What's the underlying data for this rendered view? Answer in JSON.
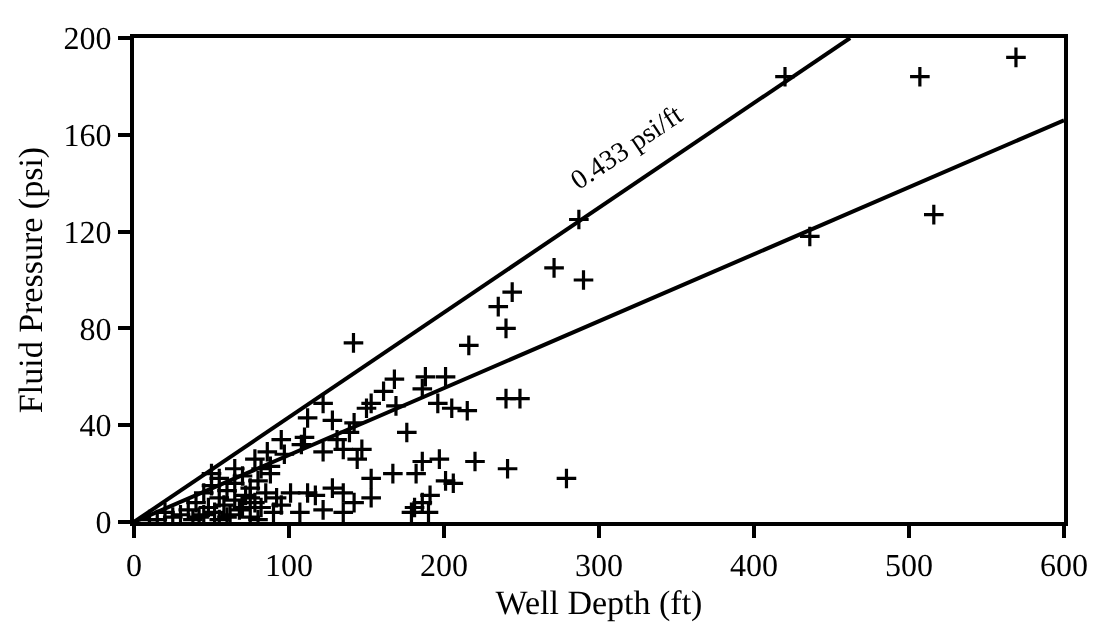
{
  "chart_data": {
    "type": "scatter",
    "xlabel": "Well Depth (ft)",
    "ylabel": "Fluid Pressure (psi)",
    "xlim": [
      0,
      600
    ],
    "ylim": [
      0,
      200
    ],
    "xticks": [
      0,
      100,
      200,
      300,
      400,
      500,
      600
    ],
    "yticks": [
      0,
      40,
      80,
      120,
      160,
      200
    ],
    "annotations": [
      "0.433 psi/ft"
    ],
    "series": [
      {
        "marker": "cross",
        "color": "#000000",
        "x": [
          420,
          507,
          569,
          287,
          271,
          290,
          436,
          516,
          279,
          141.6,
          235,
          244,
          240,
          216,
          249,
          240,
          196,
          205,
          215,
          188,
          186,
          168,
          161,
          169,
          153,
          150,
          176,
          201,
          122,
          112,
          128,
          142,
          139,
          131,
          135,
          122,
          110,
          108,
          95,
          97,
          86,
          88,
          82,
          78,
          144,
          147,
          153,
          167,
          182,
          186,
          197,
          220,
          241,
          201,
          206,
          191,
          186,
          181,
          179,
          190,
          142,
          153,
          135,
          128,
          117,
          112,
          101,
          107,
          122,
          135,
          95,
          30,
          35,
          40,
          42,
          45,
          48,
          50,
          52,
          55,
          55,
          58,
          60,
          62,
          65,
          65,
          68,
          70,
          72,
          75,
          75,
          78,
          80,
          82,
          85,
          88,
          90,
          92,
          38,
          45,
          50,
          55,
          60,
          65,
          70,
          75,
          80,
          25,
          20,
          15,
          10
        ],
        "values": [
          184,
          184,
          192,
          125,
          105,
          100,
          118,
          127,
          18,
          74,
          89,
          95,
          80,
          73,
          51,
          51,
          49,
          47,
          46,
          60,
          55,
          59,
          54,
          48,
          49,
          47,
          37,
          60,
          49,
          43,
          42,
          41,
          37,
          34,
          30,
          29,
          35,
          32,
          34,
          28,
          29,
          23,
          22,
          26,
          26,
          30,
          18,
          20,
          20,
          25,
          26,
          25,
          22,
          17,
          16,
          11,
          8,
          6,
          4,
          4,
          8,
          10,
          12,
          14,
          11,
          12,
          12,
          4,
          5,
          4,
          7,
          3,
          5,
          8,
          2,
          12,
          6,
          15,
          4,
          10,
          18,
          7,
          13,
          3,
          16,
          9,
          5,
          19,
          11,
          2,
          14,
          8,
          17,
          6,
          12,
          20,
          4,
          10,
          1,
          3,
          20,
          1,
          2,
          22,
          6,
          10,
          1,
          2,
          4,
          1,
          1
        ]
      },
      {
        "type": "line",
        "marker": "none",
        "color": "#000000",
        "line_style": "solid",
        "x": [
          0,
          462
        ],
        "values": [
          0,
          200
        ]
      },
      {
        "type": "line",
        "marker": "none",
        "color": "#000000",
        "line_style": "solid",
        "x": [
          0,
          600
        ],
        "values": [
          0,
          166
        ]
      }
    ]
  }
}
